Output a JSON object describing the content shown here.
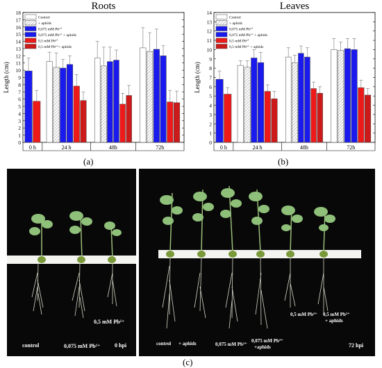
{
  "colors": {
    "control": "#ffffff",
    "aphids_hatch": "#888888",
    "pb_low": "#1a1aee",
    "pb_low_aphids": "#1a1aee",
    "pb_high": "#ee1a1a",
    "pb_high_aphids": "#cc1a1a",
    "photo_bg": "#080808"
  },
  "panel_a": {
    "caption": "(a)"
  },
  "panel_b": {
    "caption": "(b)"
  },
  "panel_c": {
    "caption": "(c)",
    "photo_0h": {
      "labels": [
        "control",
        "0,075 mM Pb²⁺",
        "0,5 mM Pb²⁺"
      ],
      "time": "0 hpi"
    },
    "photo_72h": {
      "labels": [
        "control",
        "+ aphids",
        "0,075 mM Pb²⁺",
        "0,075 mM Pb²⁺",
        "+aphids",
        "0,5 mM Pb²⁺",
        "0,5 mM Pb²⁺",
        "+ aphids"
      ],
      "time": "72 hpi"
    }
  },
  "chart_data": [
    {
      "type": "bar",
      "title": "Roots",
      "ylabel": "Length (cm)",
      "xlabel": "",
      "ylim": [
        0,
        18
      ],
      "yticks": [
        0,
        1,
        2,
        3,
        4,
        5,
        6,
        7,
        8,
        9,
        10,
        11,
        12,
        13,
        14,
        15,
        16,
        17,
        18
      ],
      "categories": [
        "0 h",
        "24 h",
        "48h",
        "72h"
      ],
      "legend": {
        "placement": "top-left",
        "entries": [
          "Control",
          "+ aphids",
          "0,075 mM Pb²⁺",
          "0,075 mM Pb²⁺ + aphids",
          "0,5 mM Pb²⁺",
          "0,5 mM Pb²⁺+ aphids"
        ]
      },
      "series": [
        {
          "name": "Control",
          "values": [
            null,
            11.2,
            11.7,
            13.1
          ],
          "errors": [
            null,
            1.3,
            2.3,
            2.8
          ]
        },
        {
          "name": "+ aphids",
          "values": [
            null,
            10.4,
            10.6,
            12.6
          ],
          "errors": [
            null,
            2.0,
            2.6,
            2.6
          ]
        },
        {
          "name": "0,075 mM Pb²⁺",
          "values": [
            9.9,
            10.3,
            11.2,
            12.9
          ],
          "errors": [
            1.8,
            1.2,
            2.0,
            2.8
          ]
        },
        {
          "name": "0,075 mM Pb²⁺ + aphids",
          "values": [
            null,
            10.8,
            11.4,
            12.0
          ],
          "errors": [
            null,
            1.2,
            1.4,
            1.4
          ]
        },
        {
          "name": "0,5 mM Pb²⁺",
          "values": [
            5.7,
            7.8,
            5.3,
            5.6
          ],
          "errors": [
            1.5,
            1.6,
            1.5,
            1.6
          ]
        },
        {
          "name": "0,5 mM Pb²⁺+ aphids",
          "values": [
            null,
            5.8,
            6.5,
            5.5
          ],
          "errors": [
            null,
            1.2,
            1.4,
            1.6
          ]
        }
      ]
    },
    {
      "type": "bar",
      "title": "Leaves",
      "ylabel": "Length (cm)",
      "xlabel": "",
      "ylim": [
        0,
        14
      ],
      "yticks": [
        0,
        1,
        2,
        3,
        4,
        5,
        6,
        7,
        8,
        9,
        10,
        11,
        12,
        13,
        14
      ],
      "categories": [
        "0 h",
        "24 h",
        "48h",
        "72h"
      ],
      "legend": {
        "placement": "top-left",
        "entries": [
          "Control",
          "+ aphids",
          "0,075 mM Pb²⁺",
          "0,075 mM Pb²⁺ + aphids",
          "0,5 mM Pb²⁺",
          "0,5 mM Pb²⁺ + aphids"
        ]
      },
      "series": [
        {
          "name": "Control",
          "values": [
            null,
            8.3,
            9.2,
            10.0
          ],
          "errors": [
            null,
            0.5,
            1.0,
            1.2
          ]
        },
        {
          "name": "+ aphids",
          "values": [
            null,
            8.1,
            8.6,
            9.9
          ],
          "errors": [
            null,
            0.7,
            0.8,
            0.9
          ]
        },
        {
          "name": "0,075 mM Pb²⁺",
          "values": [
            6.8,
            9.1,
            9.6,
            10.1
          ],
          "errors": [
            0.9,
            0.9,
            0.8,
            1.1
          ]
        },
        {
          "name": "0,075 mM Pb²⁺ + aphids",
          "values": [
            null,
            8.6,
            9.2,
            10.0
          ],
          "errors": [
            null,
            1.1,
            1.0,
            1.2
          ]
        },
        {
          "name": "0,5 mM Pb²⁺",
          "values": [
            5.2,
            5.5,
            5.8,
            5.9
          ],
          "errors": [
            0.7,
            0.7,
            0.7,
            0.8
          ]
        },
        {
          "name": "0,5 mM Pb²⁺ + aphids",
          "values": [
            null,
            4.7,
            5.3,
            5.1
          ],
          "errors": [
            null,
            0.8,
            0.7,
            0.7
          ]
        }
      ]
    }
  ]
}
